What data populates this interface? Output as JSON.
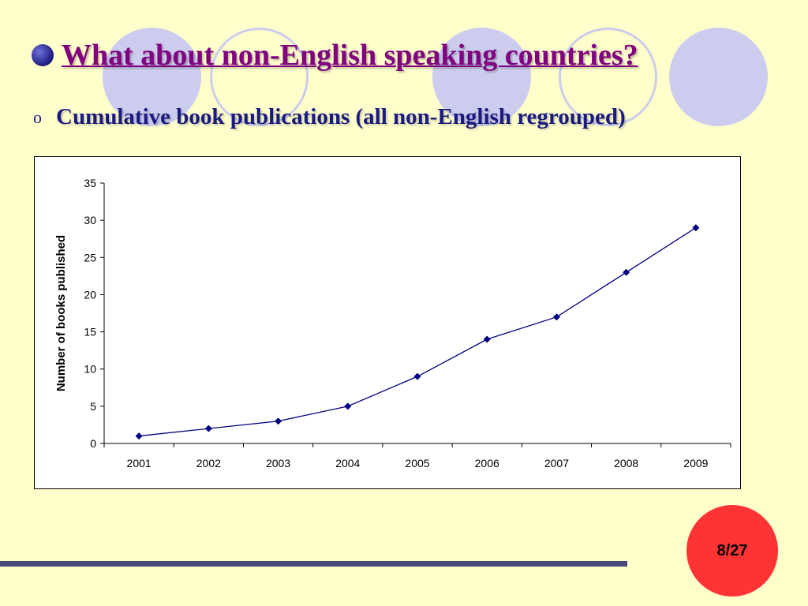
{
  "slide": {
    "title": "What about non-English speaking countries?",
    "subtitle_bullet": "o",
    "subtitle": "Cumulative book publications (all non-English regrouped)",
    "page_number": "8/27",
    "colors": {
      "background": "#ffffcc",
      "title": "#800080",
      "subtitle": "#1a1a80",
      "page_badge": "#ff3333",
      "footer_bar": "#4a4a78",
      "series_line": "#000080"
    }
  },
  "chart_data": {
    "type": "line",
    "title": "",
    "xlabel": "",
    "ylabel": "Number of books published",
    "categories": [
      "2001",
      "2002",
      "2003",
      "2004",
      "2005",
      "2006",
      "2007",
      "2008",
      "2009"
    ],
    "series": [
      {
        "values": [
          1,
          2,
          3,
          5,
          9,
          14,
          17,
          23,
          29
        ],
        "marker": "diamond"
      }
    ],
    "ylim": [
      0,
      35
    ],
    "yticks": [
      0,
      5,
      10,
      15,
      20,
      25,
      30,
      35
    ],
    "grid": false,
    "legend": "none"
  }
}
